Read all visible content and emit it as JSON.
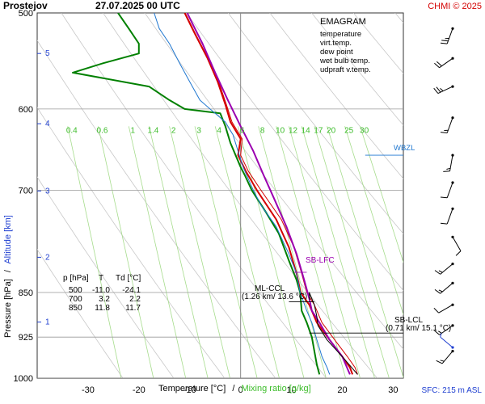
{
  "header": {
    "station": "Prostejov",
    "datetime": "27.07.2025 00 UTC",
    "credit": "CHMI © 2025"
  },
  "legend": {
    "title": "EMAGRAM",
    "items": [
      {
        "label": "temperature",
        "color": "#d40000"
      },
      {
        "label": "virt.temp.",
        "color": "#d40000"
      },
      {
        "label": "dew point",
        "color": "#008000"
      },
      {
        "label": "wet bulb temp.",
        "color": "#1f77d0"
      },
      {
        "label": "udpraft v.temp.",
        "color": "#9b00b0"
      }
    ]
  },
  "table": {
    "header": [
      "p [hPa]",
      "T",
      "Td [°C]"
    ],
    "rows": [
      [
        "500",
        "-11.0",
        "-24.1"
      ],
      [
        "700",
        "3.2",
        "2.2"
      ],
      [
        "850",
        "11.8",
        "11.7"
      ]
    ]
  },
  "annotations": {
    "wbzl": "WBZL",
    "sb_lfc": "SB-LFC",
    "ml_ccl": "ML-CCL",
    "ml_ccl_detail": "(1.26 km/ 13.6 °C)",
    "sb_lcl": "SB-LCL",
    "sb_lcl_detail": "(0.71 km/ 15.1 °C)"
  },
  "footer": {
    "xlabel_a": "Temperature [°C]",
    "xlabel_sep": "/",
    "xlabel_b": "Mixing ratio [g/kg]",
    "sfc": "SFC: 215 m ASL"
  },
  "ylabel": {
    "a": "Pressure [hPa]",
    "sep": "/",
    "b": "Altitude [km]"
  },
  "chart_data": {
    "type": "line",
    "title": "EMAGRAM",
    "xlabel": "Temperature [°C] / Mixing ratio [g/kg]",
    "ylabel": "Pressure [hPa] / Altitude [km]",
    "xlim": [
      -40,
      32
    ],
    "ylim": [
      1000,
      500
    ],
    "y_scale": "log",
    "x_ticks": [
      "-30",
      "-20",
      "-10",
      "0",
      "10",
      "20",
      "30"
    ],
    "x_tick_values": [
      -30,
      -20,
      -10,
      0,
      10,
      20,
      30
    ],
    "p_ticks": [
      500,
      600,
      700,
      850,
      925,
      1000
    ],
    "altitude_ticks": [
      {
        "km": 1,
        "p": 899
      },
      {
        "km": 2,
        "p": 795
      },
      {
        "km": 3,
        "p": 701
      },
      {
        "km": 4,
        "p": 617
      },
      {
        "km": 5,
        "p": 540
      }
    ],
    "mixing_ratio_labels": [
      "0.4",
      "0.6",
      "1",
      "1.4",
      "2",
      "3",
      "4",
      "6",
      "8",
      "10",
      "12",
      "14",
      "17",
      "20",
      "25",
      "30"
    ],
    "mixing_ratio_x": [
      -34,
      -28,
      -22,
      -18,
      -14,
      -9,
      -5,
      -0.5,
      3.5,
      7,
      9.5,
      12,
      14.5,
      17,
      20.5,
      23.5
    ],
    "series": [
      {
        "name": "temperature",
        "color": "#d40000",
        "width": 2,
        "points": [
          [
            22,
            993
          ],
          [
            21.5,
            980
          ],
          [
            20,
            960
          ],
          [
            17.5,
            930
          ],
          [
            15,
            900
          ],
          [
            13.5,
            870
          ],
          [
            11.8,
            850
          ],
          [
            11,
            820
          ],
          [
            9.5,
            780
          ],
          [
            7,
            740
          ],
          [
            3.2,
            700
          ],
          [
            1,
            675
          ],
          [
            -0.5,
            655
          ],
          [
            0,
            635
          ],
          [
            -2,
            615
          ],
          [
            -3,
            595
          ],
          [
            -4.5,
            570
          ],
          [
            -6.5,
            545
          ],
          [
            -9,
            520
          ],
          [
            -11,
            500
          ]
        ]
      },
      {
        "name": "virt.temp.",
        "color": "#d40000",
        "width": 1,
        "points": [
          [
            23,
            993
          ],
          [
            22.5,
            980
          ],
          [
            21,
            960
          ],
          [
            18.5,
            930
          ],
          [
            16,
            900
          ],
          [
            14.5,
            870
          ],
          [
            13,
            850
          ],
          [
            12,
            820
          ],
          [
            10.5,
            780
          ],
          [
            8,
            740
          ],
          [
            4,
            700
          ],
          [
            1.5,
            675
          ],
          [
            0,
            655
          ],
          [
            0.3,
            635
          ],
          [
            -1.7,
            615
          ],
          [
            -2.8,
            595
          ],
          [
            -4.3,
            570
          ],
          [
            -6.4,
            545
          ],
          [
            -8.9,
            520
          ],
          [
            -10.9,
            500
          ]
        ]
      },
      {
        "name": "dew point",
        "color": "#008000",
        "width": 2,
        "points": [
          [
            15.5,
            993
          ],
          [
            15,
            975
          ],
          [
            14.5,
            950
          ],
          [
            14,
            925
          ],
          [
            13,
            900
          ],
          [
            12,
            880
          ],
          [
            11.7,
            850
          ],
          [
            11,
            830
          ],
          [
            9.5,
            800
          ],
          [
            7.5,
            760
          ],
          [
            5,
            730
          ],
          [
            2.2,
            700
          ],
          [
            1.5,
            690
          ],
          [
            0.8,
            680
          ],
          [
            0,
            670
          ],
          [
            -2,
            640
          ],
          [
            -3,
            620
          ],
          [
            -4,
            605
          ],
          [
            -11,
            600
          ],
          [
            -14,
            590
          ],
          [
            -18,
            575
          ],
          [
            -33,
            560
          ],
          [
            -27,
            550
          ],
          [
            -20,
            540
          ],
          [
            -20,
            530
          ],
          [
            -22,
            515
          ],
          [
            -24.1,
            500
          ]
        ]
      },
      {
        "name": "wet bulb temp.",
        "color": "#1f77d0",
        "width": 1,
        "points": [
          [
            17.5,
            993
          ],
          [
            17,
            980
          ],
          [
            16,
            960
          ],
          [
            15,
            930
          ],
          [
            14,
            900
          ],
          [
            13,
            880
          ],
          [
            11.7,
            850
          ],
          [
            11,
            820
          ],
          [
            9.5,
            790
          ],
          [
            7,
            750
          ],
          [
            4,
            720
          ],
          [
            2.5,
            700
          ],
          [
            1.5,
            685
          ],
          [
            0.5,
            670
          ],
          [
            -0.5,
            650
          ],
          [
            -1.5,
            630
          ],
          [
            -3,
            615
          ],
          [
            -6,
            600
          ],
          [
            -8,
            590
          ],
          [
            -10,
            570
          ],
          [
            -12,
            550
          ],
          [
            -14,
            530
          ],
          [
            -16,
            515
          ],
          [
            -17,
            500
          ]
        ]
      },
      {
        "name": "udpraft v.temp.",
        "color": "#9b00b0",
        "width": 2,
        "points": [
          [
            21.5,
            993
          ],
          [
            20,
            960
          ],
          [
            17.5,
            930
          ],
          [
            15.5,
            900
          ],
          [
            14,
            880
          ],
          [
            13.5,
            860
          ],
          [
            12.5,
            830
          ],
          [
            11,
            790
          ],
          [
            9,
            750
          ],
          [
            6.5,
            710
          ],
          [
            4.5,
            680
          ],
          [
            2.5,
            650
          ],
          [
            0,
            620
          ],
          [
            -2.5,
            590
          ],
          [
            -5,
            560
          ],
          [
            -7.5,
            530
          ],
          [
            -9.5,
            510
          ],
          [
            -10.5,
            500
          ]
        ]
      },
      {
        "name": "",
        "color": "#000000",
        "width": 1,
        "points": [
          [
            23,
            993
          ],
          [
            20,
            960
          ],
          [
            17,
            930
          ],
          [
            15.2,
            905
          ],
          [
            15,
            890
          ],
          [
            14.5,
            870
          ],
          [
            13.5,
            850
          ],
          [
            13.6,
            862
          ]
        ]
      }
    ]
  },
  "wind_barbs": {
    "levels_hpa": [
      515,
      545,
      575,
      610,
      655,
      690,
      725,
      765,
      805,
      835,
      870,
      905,
      950,
      990
    ],
    "dirs_deg": [
      200,
      235,
      245,
      200,
      190,
      200,
      200,
      150,
      230,
      230,
      240,
      235,
      220,
      310
    ],
    "speeds_kt": [
      25,
      20,
      25,
      15,
      15,
      10,
      10,
      10,
      15,
      15,
      10,
      15,
      15,
      5
    ],
    "color": "#000000",
    "surface_color": "#1f3fd0"
  }
}
